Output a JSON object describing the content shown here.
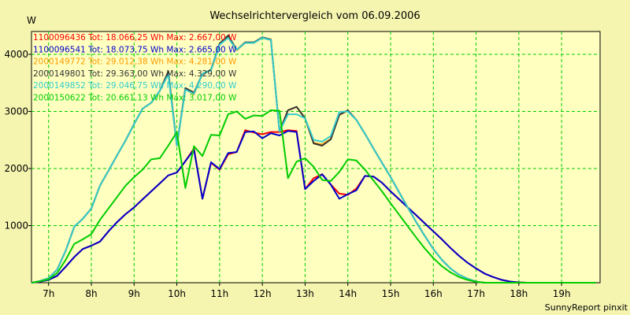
{
  "chart_data": {
    "type": "line",
    "title": "Wechselrichtervergleich vom 06.09.2006",
    "ylabel": "W",
    "xlabel": "",
    "footer": "SunnyReport pinxit",
    "ylim": [
      0,
      4400
    ],
    "xlim": [
      6.6,
      19.9
    ],
    "grid": true,
    "legend_position": "top-left",
    "yticks": [
      1000,
      2000,
      3000,
      4000
    ],
    "xticks": [
      {
        "value": 7,
        "label": "7h"
      },
      {
        "value": 8,
        "label": "8h"
      },
      {
        "value": 9,
        "label": "9h"
      },
      {
        "value": 10,
        "label": "10h"
      },
      {
        "value": 11,
        "label": "11h"
      },
      {
        "value": 12,
        "label": "12h"
      },
      {
        "value": 13,
        "label": "13h"
      },
      {
        "value": 14,
        "label": "14h"
      },
      {
        "value": 15,
        "label": "15h"
      },
      {
        "value": 16,
        "label": "16h"
      },
      {
        "value": 17,
        "label": "17h"
      },
      {
        "value": 18,
        "label": "18h"
      },
      {
        "value": 19,
        "label": "19h"
      }
    ],
    "x": [
      6.6,
      6.8,
      7.0,
      7.2,
      7.4,
      7.6,
      7.8,
      8.0,
      8.2,
      8.4,
      8.6,
      8.8,
      9.0,
      9.2,
      9.4,
      9.6,
      9.8,
      10.0,
      10.2,
      10.4,
      10.6,
      10.8,
      11.0,
      11.2,
      11.4,
      11.6,
      11.8,
      12.0,
      12.2,
      12.4,
      12.6,
      12.8,
      13.0,
      13.2,
      13.4,
      13.6,
      13.8,
      14.0,
      14.2,
      14.4,
      14.6,
      14.8,
      15.0,
      15.2,
      15.4,
      15.6,
      15.8,
      16.0,
      16.2,
      16.4,
      16.6,
      16.8,
      17.0,
      17.2,
      17.4,
      17.6,
      17.8,
      18.0,
      18.2,
      18.4,
      18.6,
      18.8,
      19.0,
      19.2,
      19.4,
      19.6,
      19.8
    ],
    "series": [
      {
        "name": "1100096436 Tot: 18.066,25 Wh Max: 2.667,00 W",
        "color": "#ff0000",
        "values": [
          0,
          20,
          50,
          120,
          280,
          450,
          590,
          650,
          720,
          900,
          1060,
          1200,
          1320,
          1460,
          1600,
          1740,
          1880,
          1930,
          2130,
          2350,
          1470,
          2100,
          1980,
          2250,
          2290,
          2670,
          2630,
          2600,
          2640,
          2640,
          2670,
          2660,
          1640,
          1830,
          1900,
          1720,
          1560,
          1540,
          1650,
          1870,
          1860,
          1750,
          1600,
          1460,
          1320,
          1180,
          1040,
          900,
          760,
          610,
          470,
          350,
          250,
          160,
          100,
          50,
          20,
          5,
          0,
          0,
          0,
          0,
          0,
          0,
          0,
          0,
          0
        ]
      },
      {
        "name": "1100096541 Tot: 18.073,75 Wh Max: 2.665,00 W",
        "color": "#0000cc",
        "values": [
          0,
          20,
          50,
          120,
          280,
          450,
          590,
          650,
          720,
          900,
          1060,
          1200,
          1320,
          1460,
          1600,
          1740,
          1880,
          1930,
          2130,
          2330,
          1470,
          2110,
          1990,
          2270,
          2290,
          2640,
          2650,
          2530,
          2620,
          2580,
          2660,
          2640,
          1640,
          1780,
          1900,
          1720,
          1470,
          1550,
          1620,
          1870,
          1860,
          1750,
          1600,
          1460,
          1320,
          1180,
          1040,
          900,
          760,
          610,
          470,
          350,
          250,
          160,
          100,
          50,
          20,
          5,
          0,
          0,
          0,
          0,
          0,
          0,
          0,
          0,
          0
        ]
      },
      {
        "name": "2000149772 Tot: 29.012,38 Wh Max: 4.281,00 W",
        "color": "#ff9900",
        "values": [
          0,
          30,
          80,
          230,
          560,
          980,
          1120,
          1300,
          1700,
          1960,
          2230,
          2490,
          2780,
          3050,
          3150,
          3360,
          3680,
          2400,
          3390,
          3300,
          3660,
          3720,
          4170,
          4300,
          4070,
          4200,
          4200,
          4290,
          4250,
          2650,
          3020,
          3080,
          2880,
          2450,
          2420,
          2520,
          2940,
          3010,
          2850,
          2610,
          2350,
          2100,
          1850,
          1580,
          1320,
          1060,
          820,
          590,
          400,
          250,
          140,
          70,
          20,
          0,
          0,
          0,
          0,
          0,
          0,
          0,
          0,
          0,
          0,
          0,
          0,
          0,
          0
        ]
      },
      {
        "name": "2000149801 Tot: 29.363,00 Wh Max: 4.329,00 W",
        "color": "#333333",
        "values": [
          0,
          30,
          80,
          230,
          560,
          980,
          1120,
          1300,
          1700,
          1960,
          2230,
          2490,
          2780,
          3050,
          3150,
          3360,
          3700,
          2400,
          3410,
          3330,
          3660,
          3730,
          4190,
          4330,
          4080,
          4210,
          4210,
          4300,
          4260,
          2650,
          3020,
          3080,
          2880,
          2440,
          2400,
          2510,
          2940,
          3020,
          2850,
          2610,
          2350,
          2100,
          1850,
          1580,
          1320,
          1060,
          820,
          590,
          400,
          250,
          140,
          70,
          20,
          0,
          0,
          0,
          0,
          0,
          0,
          0,
          0,
          0,
          0,
          0,
          0,
          0,
          0
        ]
      },
      {
        "name": "2000149852 Tot: 29.046,75 Wh Max: 4.290,00 W",
        "color": "#33cccc",
        "values": [
          0,
          30,
          80,
          230,
          560,
          980,
          1120,
          1300,
          1700,
          1960,
          2230,
          2490,
          2780,
          3050,
          3150,
          3360,
          3650,
          2400,
          3380,
          3310,
          3660,
          3720,
          4170,
          4290,
          4080,
          4200,
          4200,
          4290,
          4250,
          2650,
          2950,
          2950,
          2880,
          2500,
          2470,
          2570,
          2990,
          3000,
          2850,
          2610,
          2350,
          2100,
          1850,
          1580,
          1320,
          1060,
          820,
          590,
          400,
          250,
          140,
          70,
          20,
          0,
          0,
          0,
          0,
          0,
          0,
          0,
          0,
          0,
          0,
          0,
          0,
          0,
          0
        ]
      },
      {
        "name": "2000150622 Tot: 20.661,13 Wh Max: 3.017,00 W",
        "color": "#00cc00",
        "values": [
          0,
          25,
          60,
          170,
          400,
          680,
          760,
          850,
          1100,
          1300,
          1500,
          1700,
          1850,
          1980,
          2160,
          2180,
          2400,
          2640,
          1660,
          2390,
          2220,
          2590,
          2580,
          2950,
          3000,
          2870,
          2930,
          2920,
          3020,
          3010,
          1830,
          2120,
          2180,
          2030,
          1800,
          1780,
          1940,
          2160,
          2140,
          1980,
          1790,
          1600,
          1390,
          1190,
          990,
          790,
          600,
          430,
          290,
          180,
          100,
          50,
          15,
          0,
          0,
          0,
          0,
          0,
          0,
          0,
          0,
          0,
          0,
          0,
          0,
          0,
          0
        ]
      }
    ]
  }
}
